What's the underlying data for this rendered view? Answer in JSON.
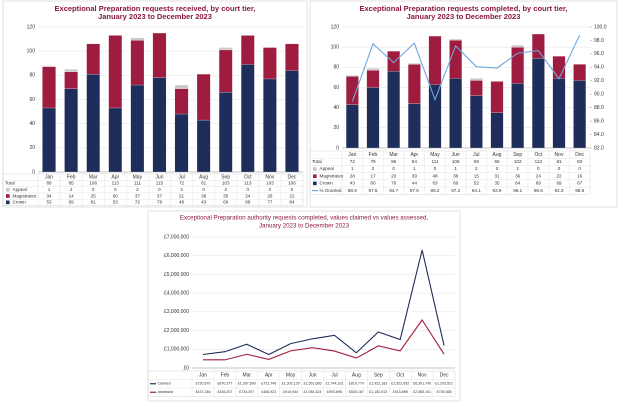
{
  "chart_data": [
    {
      "type": "stacked_bar",
      "title": [
        "Exceptional Preparation requests received, by court tier,",
        "January 2023 to December 2023"
      ],
      "categories": [
        "Jan",
        "Feb",
        "Mar",
        "Apr",
        "May",
        "Jun",
        "Jul",
        "Aug",
        "Sep",
        "Oct",
        "Nov",
        "Dec"
      ],
      "total": {
        "name": "Total",
        "values": [
          88,
          85,
          106,
          113,
          111,
          115,
          72,
          81,
          103,
          113,
          103,
          106
        ]
      },
      "series": [
        {
          "name": "Appeal",
          "color": "#c9c9c9",
          "values": [
            1,
            2,
            0,
            0,
            2,
            0,
            3,
            0,
            2,
            0,
            0,
            0
          ]
        },
        {
          "name": "Magistrates",
          "color": "#9e1c3f",
          "values": [
            34,
            14,
            25,
            60,
            37,
            37,
            21,
            38,
            35,
            24,
            26,
            22
          ]
        },
        {
          "name": "Crown",
          "color": "#1f2d5a",
          "values": [
            53,
            69,
            81,
            53,
            72,
            78,
            48,
            43,
            66,
            89,
            77,
            84
          ]
        }
      ],
      "ylim": [
        0,
        120
      ],
      "yticks": [
        0,
        20,
        40,
        60,
        80,
        100,
        120
      ],
      "grid": true
    },
    {
      "type": "stacked_bar",
      "title": [
        "Exceptional Preparation requests completed, by court tier,",
        "January 2023 to December 2023"
      ],
      "categories": [
        "Jan",
        "Feb",
        "Mar",
        "Apr",
        "May",
        "Jun",
        "Jul",
        "Aug",
        "Sep",
        "Oct",
        "Nov",
        "Dec"
      ],
      "total": {
        "name": "Total",
        "values": [
          72,
          79,
          96,
          84,
          111,
          108,
          69,
          66,
          102,
          113,
          91,
          83
        ]
      },
      "series": [
        {
          "name": "Appeal",
          "color": "#c9c9c9",
          "values": [
            1,
            2,
            0,
            1,
            0,
            1,
            2,
            0,
            2,
            0,
            0,
            0
          ]
        },
        {
          "name": "Magistrates",
          "color": "#9e1c3f",
          "values": [
            28,
            17,
            20,
            39,
            48,
            38,
            15,
            31,
            36,
            24,
            22,
            16
          ]
        },
        {
          "name": "Crown",
          "color": "#1f2d5a",
          "values": [
            43,
            60,
            76,
            44,
            63,
            69,
            52,
            35,
            64,
            89,
            69,
            67
          ]
        },
        {
          "name": "% Granted",
          "color": "#6fa8dc",
          "type": "line",
          "axis": "y2",
          "values": [
            88.9,
            97.5,
            94.7,
            97.6,
            89.2,
            97.2,
            94.1,
            93.9,
            96.1,
            96.5,
            92.3,
            98.8
          ]
        }
      ],
      "ylim": [
        0,
        120
      ],
      "yticks": [
        0,
        20,
        40,
        60,
        80,
        100,
        120
      ],
      "y2lim": [
        82,
        100
      ],
      "y2ticks": [
        {
          "value": 82,
          "label": "82.0"
        },
        {
          "value": 84,
          "label": "84.0"
        },
        {
          "value": 86,
          "label": "86.0"
        },
        {
          "value": 88,
          "label": "88.0"
        },
        {
          "value": 90,
          "label": "90.0"
        },
        {
          "value": 92,
          "label": "92.0"
        },
        {
          "value": 94,
          "label": "94.0"
        },
        {
          "value": 96,
          "label": "96.0"
        },
        {
          "value": 98,
          "label": "98.0"
        },
        {
          "value": 100,
          "label": "100.0"
        }
      ],
      "grid": true
    },
    {
      "type": "line",
      "title": [
        "Exceptional Preparation authority requests completed, values claimed vs values assessed,",
        "January 2023 to December 2023"
      ],
      "categories": [
        "Jan",
        "Feb",
        "Mar",
        "Apr",
        "May",
        "Jun",
        "Jul",
        "Aug",
        "Sep",
        "Oct",
        "Nov",
        "Dec"
      ],
      "series": [
        {
          "name": "Claimed",
          "color": "#1f2d5a",
          "values": [
            720670,
            870377,
            1267890,
            721749,
            1303129,
            1561665,
            1744331,
            810770,
            1922183,
            1522652,
            6301796,
            1203521
          ],
          "value_labels": [
            "£720,670",
            "£870,377",
            "£1,267,890",
            "£721,749",
            "£1,303,129",
            "£1,561,665",
            "£1,744,331",
            "£810,770",
            "£1,922,183",
            "£1,522,652",
            "£6,301,796",
            "£1,203,521"
          ]
        },
        {
          "name": "Assessed",
          "color": "#9e1c3f",
          "values": [
            437246,
            435207,
            734297,
            456923,
            915944,
            1084324,
            903696,
            530187,
            1182613,
            915898,
            2565101,
            739368
          ],
          "value_labels": [
            "£437,246",
            "£435,207",
            "£734,297",
            "£456,923",
            "£915,944",
            "£1,084,324",
            "£903,696",
            "£530,187",
            "£1,182,613",
            "£915,898",
            "£2,565,101",
            "£739,368"
          ]
        }
      ],
      "ylim": [
        0,
        7000000
      ],
      "yticks": [
        {
          "value": 0,
          "label": "£0"
        },
        {
          "value": 1000000,
          "label": "£1,000,000"
        },
        {
          "value": 2000000,
          "label": "£2,000,000"
        },
        {
          "value": 3000000,
          "label": "£3,000,000"
        },
        {
          "value": 4000000,
          "label": "£4,000,000"
        },
        {
          "value": 5000000,
          "label": "£5,000,000"
        },
        {
          "value": 6000000,
          "label": "£6,000,000"
        },
        {
          "value": 7000000,
          "label": "£7,000,000"
        }
      ],
      "grid": true
    }
  ]
}
